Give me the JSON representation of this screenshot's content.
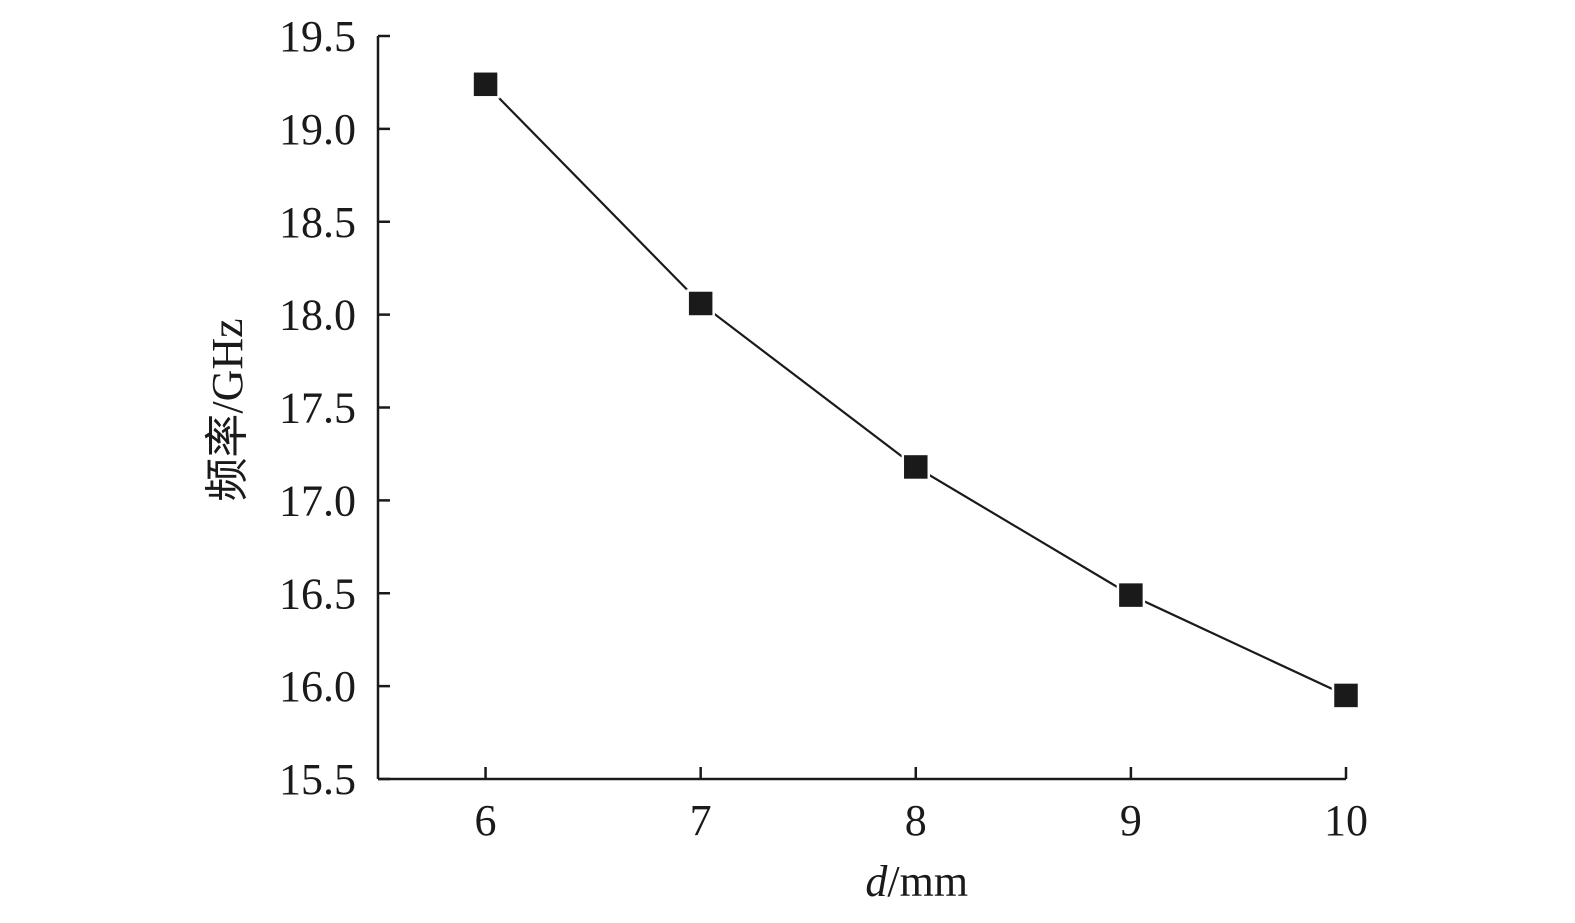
{
  "chart_data": {
    "type": "line",
    "title": "",
    "xlabel_italic": "d",
    "xlabel_rest": "/mm",
    "ylabel": "频率/GHz",
    "x": [
      6,
      7,
      8,
      9,
      10
    ],
    "series": [
      {
        "values": [
          19.24,
          18.06,
          17.18,
          16.49,
          15.95
        ],
        "color": "#1a1a1a",
        "marker": "square"
      }
    ],
    "xlim": [
      5.5,
      10
    ],
    "ylim": [
      15.5,
      19.5
    ],
    "xticks": [
      6,
      7,
      8,
      9,
      10
    ],
    "yticks": [
      15.5,
      16.0,
      16.5,
      17.0,
      17.5,
      18.0,
      18.5,
      19.0,
      19.5
    ],
    "xtick_labels": [
      "6",
      "7",
      "8",
      "9",
      "10"
    ],
    "ytick_labels": [
      "15.5",
      "16.0",
      "16.5",
      "17.0",
      "17.5",
      "18.0",
      "18.5",
      "19.0",
      "19.5"
    ],
    "grid": false,
    "legend": "none"
  }
}
